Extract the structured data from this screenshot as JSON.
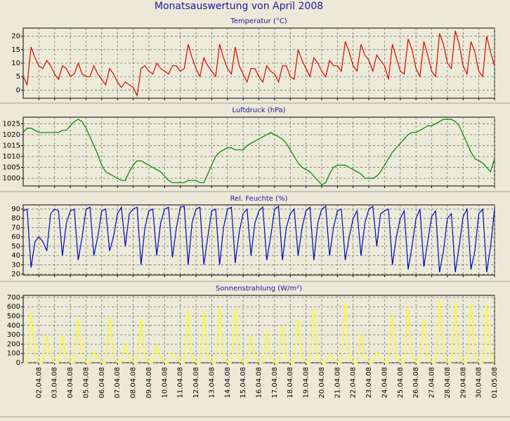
{
  "title": "Monatsauswertung von April 2008",
  "chart_data": [
    {
      "type": "line",
      "title": "Temperatur (°C)",
      "color": "#e00000",
      "grid": true,
      "ylim": [
        -3,
        23
      ],
      "yticks": [
        0,
        5,
        10,
        15,
        20
      ],
      "xlim": [
        0,
        30
      ],
      "xticks": [
        1,
        2,
        3,
        4,
        5,
        6,
        7,
        8,
        9,
        10,
        11,
        12,
        13,
        14,
        15,
        16,
        17,
        18,
        19,
        20,
        21,
        22,
        23,
        24,
        25,
        26,
        27,
        28,
        29,
        30
      ],
      "x": [
        0,
        0.25,
        0.5,
        0.75,
        1,
        1.25,
        1.5,
        1.75,
        2,
        2.25,
        2.5,
        2.75,
        3,
        3.25,
        3.5,
        3.75,
        4,
        4.25,
        4.5,
        4.75,
        5,
        5.25,
        5.5,
        5.75,
        6,
        6.25,
        6.5,
        6.75,
        7,
        7.25,
        7.5,
        7.75,
        8,
        8.25,
        8.5,
        8.75,
        9,
        9.25,
        9.5,
        9.75,
        10,
        10.25,
        10.5,
        10.75,
        11,
        11.25,
        11.5,
        11.75,
        12,
        12.25,
        12.5,
        12.75,
        13,
        13.25,
        13.5,
        13.75,
        14,
        14.25,
        14.5,
        14.75,
        15,
        15.25,
        15.5,
        15.75,
        16,
        16.25,
        16.5,
        16.75,
        17,
        17.25,
        17.5,
        17.75,
        18,
        18.25,
        18.5,
        18.75,
        19,
        19.25,
        19.5,
        19.75,
        20,
        20.25,
        20.5,
        20.75,
        21,
        21.25,
        21.5,
        21.75,
        22,
        22.25,
        22.5,
        22.75,
        23,
        23.25,
        23.5,
        23.75,
        24,
        24.25,
        24.5,
        24.75,
        25,
        25.25,
        25.5,
        25.75,
        26,
        26.25,
        26.5,
        26.75,
        27,
        27.25,
        27.5,
        27.75,
        28,
        28.25,
        28.5,
        28.75,
        29,
        29.25,
        29.5,
        29.75,
        30
      ],
      "values": [
        5,
        2,
        16,
        12,
        9,
        8,
        11,
        9,
        6,
        4,
        9,
        8,
        5,
        6,
        10,
        6,
        5,
        5,
        9,
        6,
        4,
        2,
        8,
        6,
        3,
        1,
        3,
        2,
        1,
        -2,
        8,
        9,
        7,
        6,
        10,
        8,
        7,
        6,
        9,
        9,
        7,
        8,
        17,
        12,
        8,
        5,
        12,
        9,
        7,
        5,
        17,
        12,
        8,
        6,
        16,
        9,
        6,
        3,
        8,
        8,
        5,
        3,
        9,
        7,
        6,
        3,
        9,
        9,
        5,
        4,
        15,
        11,
        8,
        5,
        12,
        10,
        7,
        5,
        11,
        9,
        9,
        7,
        18,
        14,
        9,
        7,
        17,
        13,
        11,
        7,
        13,
        11,
        9,
        4,
        17,
        12,
        7,
        6,
        19,
        15,
        8,
        5,
        18,
        13,
        7,
        5,
        21,
        17,
        10,
        8,
        22,
        17,
        9,
        6,
        18,
        14,
        7,
        5,
        20,
        14,
        9
      ]
    },
    {
      "type": "line",
      "title": "Luftdruck (hPa)",
      "color": "#008000",
      "grid": true,
      "ylim": [
        996.5,
        1028
      ],
      "yticks": [
        1000,
        1005,
        1010,
        1015,
        1020,
        1025
      ],
      "xlim": [
        0,
        30
      ],
      "xticks": [
        1,
        2,
        3,
        4,
        5,
        6,
        7,
        8,
        9,
        10,
        11,
        12,
        13,
        14,
        15,
        16,
        17,
        18,
        19,
        20,
        21,
        22,
        23,
        24,
        25,
        26,
        27,
        28,
        29,
        30
      ],
      "x": [
        0,
        0.25,
        0.5,
        0.75,
        1,
        1.25,
        1.5,
        1.75,
        2,
        2.25,
        2.5,
        2.75,
        3,
        3.25,
        3.5,
        3.75,
        4,
        4.25,
        4.5,
        4.75,
        5,
        5.25,
        5.5,
        5.75,
        6,
        6.25,
        6.5,
        6.75,
        7,
        7.25,
        7.5,
        7.75,
        8,
        8.25,
        8.5,
        8.75,
        9,
        9.25,
        9.5,
        9.75,
        10,
        10.25,
        10.5,
        10.75,
        11,
        11.25,
        11.5,
        11.75,
        12,
        12.25,
        12.5,
        12.75,
        13,
        13.25,
        13.5,
        13.75,
        14,
        14.25,
        14.5,
        14.75,
        15,
        15.25,
        15.5,
        15.75,
        16,
        16.25,
        16.5,
        16.75,
        17,
        17.25,
        17.5,
        17.75,
        18,
        18.25,
        18.5,
        18.75,
        19,
        19.25,
        19.5,
        19.75,
        20,
        20.25,
        20.5,
        20.75,
        21,
        21.25,
        21.5,
        21.75,
        22,
        22.25,
        22.5,
        22.75,
        23,
        23.25,
        23.5,
        23.75,
        24,
        24.25,
        24.5,
        24.75,
        25,
        25.25,
        25.5,
        25.75,
        26,
        26.25,
        26.5,
        26.75,
        27,
        27.25,
        27.5,
        27.75,
        28,
        28.25,
        28.5,
        28.75,
        29,
        29.25,
        29.5,
        29.75,
        30
      ],
      "values": [
        1021,
        1023,
        1023,
        1022,
        1021,
        1021,
        1021,
        1021,
        1021,
        1021,
        1022,
        1022,
        1024,
        1026,
        1027,
        1026,
        1023,
        1019,
        1015,
        1011,
        1006,
        1003,
        1002,
        1001,
        1000,
        999,
        999,
        1003,
        1006,
        1008,
        1008,
        1007,
        1006,
        1005,
        1004,
        1003,
        1001,
        999,
        998,
        998,
        998,
        998,
        999,
        999,
        999,
        998,
        998,
        1002,
        1006,
        1010,
        1012,
        1013,
        1014,
        1014,
        1013,
        1013,
        1013,
        1015,
        1016,
        1017,
        1018,
        1019,
        1020,
        1021,
        1020,
        1019,
        1018,
        1016,
        1013,
        1010,
        1007,
        1005,
        1004,
        1003,
        1001,
        999,
        997,
        998,
        1002,
        1005,
        1006,
        1006,
        1006,
        1005,
        1004,
        1003,
        1002,
        1000,
        1000,
        1000,
        1001,
        1003,
        1006,
        1009,
        1012,
        1014,
        1016,
        1018,
        1020,
        1021,
        1021,
        1022,
        1023,
        1024,
        1024,
        1025,
        1026,
        1027,
        1027,
        1027,
        1026,
        1024,
        1020,
        1016,
        1012,
        1009,
        1008,
        1007,
        1005,
        1003,
        1009
      ]
    },
    {
      "type": "line",
      "title": "Rel. Feuchte (%)",
      "color": "#0000c0",
      "grid": true,
      "ylim": [
        19,
        94.5
      ],
      "yticks": [
        20,
        30,
        40,
        50,
        60,
        70,
        80,
        90
      ],
      "xlim": [
        0,
        30
      ],
      "xticks": [
        1,
        2,
        3,
        4,
        5,
        6,
        7,
        8,
        9,
        10,
        11,
        12,
        13,
        14,
        15,
        16,
        17,
        18,
        19,
        20,
        21,
        22,
        23,
        24,
        25,
        26,
        27,
        28,
        29,
        30
      ],
      "x": [
        0,
        0.25,
        0.5,
        0.75,
        1,
        1.25,
        1.5,
        1.75,
        2,
        2.25,
        2.5,
        2.75,
        3,
        3.25,
        3.5,
        3.75,
        4,
        4.25,
        4.5,
        4.75,
        5,
        5.25,
        5.5,
        5.75,
        6,
        6.25,
        6.5,
        6.75,
        7,
        7.25,
        7.5,
        7.75,
        8,
        8.25,
        8.5,
        8.75,
        9,
        9.25,
        9.5,
        9.75,
        10,
        10.25,
        10.5,
        10.75,
        11,
        11.25,
        11.5,
        11.75,
        12,
        12.25,
        12.5,
        12.75,
        13,
        13.25,
        13.5,
        13.75,
        14,
        14.25,
        14.5,
        14.75,
        15,
        15.25,
        15.5,
        15.75,
        16,
        16.25,
        16.5,
        16.75,
        17,
        17.25,
        17.5,
        17.75,
        18,
        18.25,
        18.5,
        18.75,
        19,
        19.25,
        19.5,
        19.75,
        20,
        20.25,
        20.5,
        20.75,
        21,
        21.25,
        21.5,
        21.75,
        22,
        22.25,
        22.5,
        22.75,
        23,
        23.25,
        23.5,
        23.75,
        24,
        24.25,
        24.5,
        24.75,
        25,
        25.25,
        25.5,
        25.75,
        26,
        26.25,
        26.5,
        26.75,
        27,
        27.25,
        27.5,
        27.75,
        28,
        28.25,
        28.5,
        28.75,
        29,
        29.25,
        29.5,
        29.75,
        30
      ],
      "values": [
        88,
        90,
        27,
        55,
        60,
        55,
        45,
        85,
        90,
        88,
        40,
        75,
        88,
        90,
        35,
        60,
        90,
        92,
        40,
        60,
        88,
        90,
        45,
        60,
        85,
        92,
        50,
        85,
        90,
        92,
        30,
        70,
        88,
        90,
        40,
        75,
        90,
        92,
        38,
        70,
        92,
        93,
        30,
        75,
        90,
        92,
        30,
        60,
        88,
        90,
        30,
        70,
        90,
        92,
        32,
        65,
        85,
        90,
        40,
        75,
        88,
        92,
        35,
        60,
        90,
        93,
        35,
        70,
        85,
        90,
        40,
        70,
        88,
        92,
        35,
        75,
        90,
        93,
        40,
        70,
        88,
        90,
        35,
        60,
        80,
        88,
        40,
        75,
        90,
        93,
        50,
        85,
        88,
        90,
        30,
        60,
        80,
        88,
        25,
        50,
        80,
        90,
        28,
        55,
        82,
        88,
        22,
        45,
        80,
        85,
        22,
        50,
        82,
        90,
        25,
        45,
        85,
        90,
        22,
        50,
        90
      ]
    },
    {
      "type": "line",
      "title": "Sonnenstrahlung (W/m²)",
      "color": "#ffff00",
      "grid": true,
      "ylim": [
        0,
        722
      ],
      "yticks": [
        0,
        100,
        200,
        300,
        400,
        500,
        600,
        700
      ],
      "xlim": [
        0,
        30
      ],
      "xticks": [
        {
          "value": 1,
          "label": "02.04.08"
        },
        {
          "value": 2,
          "label": "03.04.08"
        },
        {
          "value": 3,
          "label": "04.04.08"
        },
        {
          "value": 4,
          "label": "05.04.08"
        },
        {
          "value": 5,
          "label": "06.04.08"
        },
        {
          "value": 6,
          "label": "07.04.08"
        },
        {
          "value": 7,
          "label": "08.04.08"
        },
        {
          "value": 8,
          "label": "09.04.08"
        },
        {
          "value": 9,
          "label": "10.04.08"
        },
        {
          "value": 10,
          "label": "11.04.08"
        },
        {
          "value": 11,
          "label": "12.04.08"
        },
        {
          "value": 12,
          "label": "13.04.08"
        },
        {
          "value": 13,
          "label": "14.04.08"
        },
        {
          "value": 14,
          "label": "15.04.08"
        },
        {
          "value": 15,
          "label": "16.04.08"
        },
        {
          "value": 16,
          "label": "17.04.08"
        },
        {
          "value": 17,
          "label": "18.04.08"
        },
        {
          "value": 18,
          "label": "19.04.08"
        },
        {
          "value": 19,
          "label": "20.04.08"
        },
        {
          "value": 20,
          "label": "21.04.08"
        },
        {
          "value": 21,
          "label": "22.04.08"
        },
        {
          "value": 22,
          "label": "23.04.08"
        },
        {
          "value": 23,
          "label": "24.04.08"
        },
        {
          "value": 24,
          "label": "25.04.08"
        },
        {
          "value": 25,
          "label": "26.04.08"
        },
        {
          "value": 26,
          "label": "27.04.08"
        },
        {
          "value": 27,
          "label": "28.04.08"
        },
        {
          "value": 28,
          "label": "29.04.08"
        },
        {
          "value": 29,
          "label": "30.04.08"
        },
        {
          "value": 30,
          "label": "01.05.08"
        }
      ],
      "x": [
        0,
        0.25,
        0.5,
        0.75,
        1,
        1.25,
        1.5,
        1.75,
        2,
        2.25,
        2.5,
        2.75,
        3,
        3.25,
        3.5,
        3.75,
        4,
        4.25,
        4.5,
        4.75,
        5,
        5.25,
        5.5,
        5.75,
        6,
        6.25,
        6.5,
        6.75,
        7,
        7.25,
        7.5,
        7.75,
        8,
        8.25,
        8.5,
        8.75,
        9,
        9.25,
        9.5,
        9.75,
        10,
        10.25,
        10.5,
        10.75,
        11,
        11.25,
        11.5,
        11.75,
        12,
        12.25,
        12.5,
        12.75,
        13,
        13.25,
        13.5,
        13.75,
        14,
        14.25,
        14.5,
        14.75,
        15,
        15.25,
        15.5,
        15.75,
        16,
        16.25,
        16.5,
        16.75,
        17,
        17.25,
        17.5,
        17.75,
        18,
        18.25,
        18.5,
        18.75,
        19,
        19.25,
        19.5,
        19.75,
        20,
        20.25,
        20.5,
        20.75,
        21,
        21.25,
        21.5,
        21.75,
        22,
        22.25,
        22.5,
        22.75,
        23,
        23.25,
        23.5,
        23.75,
        24,
        24.25,
        24.5,
        24.75,
        25,
        25.25,
        25.5,
        25.75,
        26,
        26.25,
        26.5,
        26.75,
        27,
        27.25,
        27.5,
        27.75,
        28,
        28.25,
        28.5,
        28.75,
        29,
        29.25,
        29.5,
        29.75,
        30
      ],
      "values": [
        0,
        0,
        540,
        50,
        0,
        0,
        300,
        50,
        0,
        0,
        300,
        50,
        0,
        0,
        480,
        50,
        0,
        0,
        120,
        50,
        0,
        0,
        500,
        50,
        0,
        0,
        200,
        50,
        0,
        0,
        480,
        50,
        0,
        0,
        200,
        50,
        0,
        0,
        100,
        50,
        0,
        0,
        560,
        50,
        0,
        0,
        550,
        50,
        0,
        0,
        600,
        50,
        0,
        0,
        580,
        50,
        0,
        0,
        300,
        50,
        0,
        0,
        350,
        50,
        0,
        0,
        400,
        50,
        0,
        0,
        460,
        50,
        0,
        0,
        580,
        50,
        0,
        0,
        100,
        50,
        0,
        0,
        650,
        50,
        0,
        0,
        320,
        50,
        0,
        0,
        120,
        50,
        0,
        0,
        520,
        50,
        0,
        0,
        600,
        50,
        0,
        0,
        470,
        50,
        0,
        0,
        680,
        50,
        0,
        0,
        650,
        50,
        0,
        0,
        640,
        50,
        0,
        0,
        620,
        50,
        0
      ]
    }
  ]
}
